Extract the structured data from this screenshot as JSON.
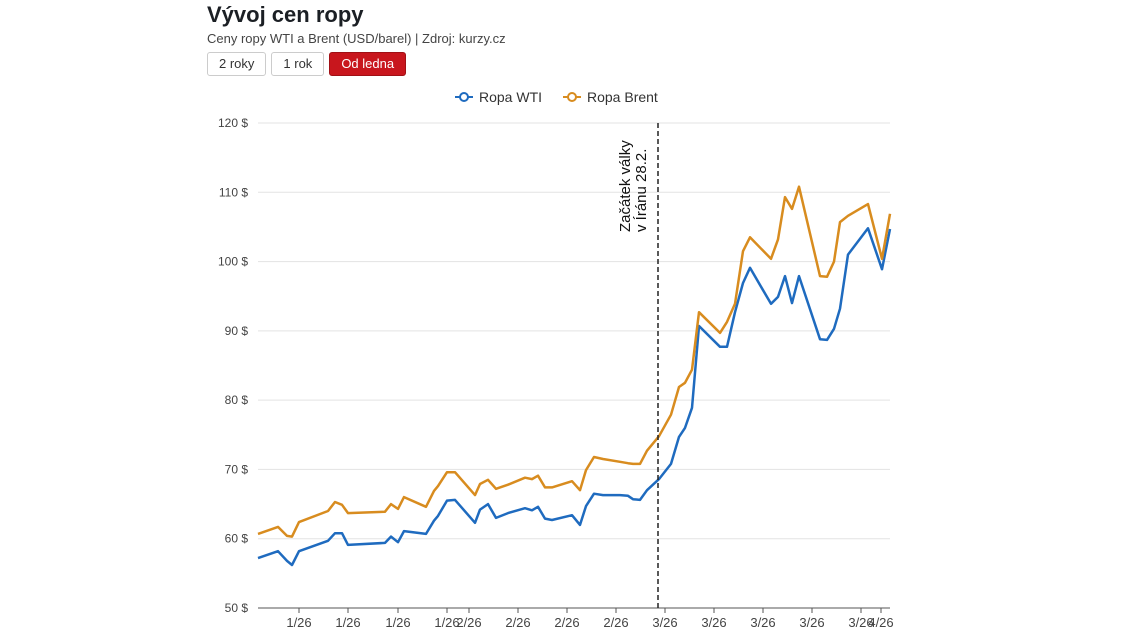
{
  "header": {
    "title": "Vývoj cen ropy",
    "subtitle": "Ceny ropy WTI a Brent (USD/barel) | Zdroj: kurzy.cz"
  },
  "range_buttons": [
    {
      "label": "2 roky",
      "active": false
    },
    {
      "label": "1 rok",
      "active": false
    },
    {
      "label": "Od ledna",
      "active": true
    }
  ],
  "colors": {
    "wti": "#1f6bbf",
    "brent": "#d88c1f",
    "active_button": "#c8161d"
  },
  "chart_data": {
    "type": "line",
    "ylim": [
      50,
      120
    ],
    "y_ticks": [
      50,
      60,
      70,
      80,
      90,
      100,
      110,
      120
    ],
    "y_tick_format": "{v} $",
    "x_tick_labels": [
      "1/26",
      "1/26",
      "1/26",
      "1/26",
      "2/26",
      "2/26",
      "2/26",
      "2/26",
      "3/26",
      "3/26",
      "3/26",
      "3/26",
      "3/26",
      "4/26"
    ],
    "grid": true,
    "legend": "top",
    "annotation": {
      "lines": [
        "Začátek války",
        "v Íránu 28.2."
      ]
    },
    "series": [
      {
        "name": "Ropa WTI",
        "color": "#1f6bbf",
        "values": [
          57.2,
          58.2,
          56.8,
          56.2,
          58.2,
          59.7,
          60.8,
          60.8,
          59.1,
          59.4,
          60.3,
          59.5,
          61.1,
          60.7,
          62.6,
          63.3,
          65.5,
          65.6,
          62.3,
          64.2,
          65.0,
          63.0,
          63.7,
          64.4,
          64.1,
          64.6,
          62.9,
          62.7,
          63.4,
          62.0,
          64.7,
          66.5,
          66.3,
          66.3,
          66.2,
          65.7,
          65.6,
          67.0,
          68.6,
          70.8,
          74.7,
          76.0,
          78.9,
          90.7,
          87.7,
          87.7,
          92.7,
          96.9,
          99.1,
          93.9,
          94.9,
          97.9,
          94.0,
          97.9,
          88.8,
          88.7,
          90.3,
          93.2,
          101.0,
          104.8,
          98.9,
          104.7
        ]
      },
      {
        "name": "Ropa Brent",
        "color": "#d88c1f",
        "values": [
          60.7,
          61.7,
          60.4,
          60.3,
          62.4,
          64.0,
          65.3,
          64.9,
          63.7,
          63.9,
          65.0,
          64.3,
          66.0,
          64.6,
          66.9,
          67.6,
          69.6,
          69.6,
          66.3,
          67.9,
          68.5,
          67.2,
          67.8,
          68.8,
          68.6,
          69.1,
          67.4,
          67.4,
          68.3,
          67.0,
          69.9,
          71.8,
          71.5,
          71.1,
          70.9,
          70.8,
          70.8,
          72.7,
          74.8,
          77.9,
          81.9,
          82.5,
          84.4,
          92.7,
          89.7,
          91.3,
          93.9,
          101.5,
          103.5,
          100.4,
          103.2,
          109.3,
          107.6,
          110.8,
          97.9,
          97.8,
          100.0,
          105.7,
          106.6,
          108.3,
          100.4,
          106.9
        ]
      }
    ]
  }
}
